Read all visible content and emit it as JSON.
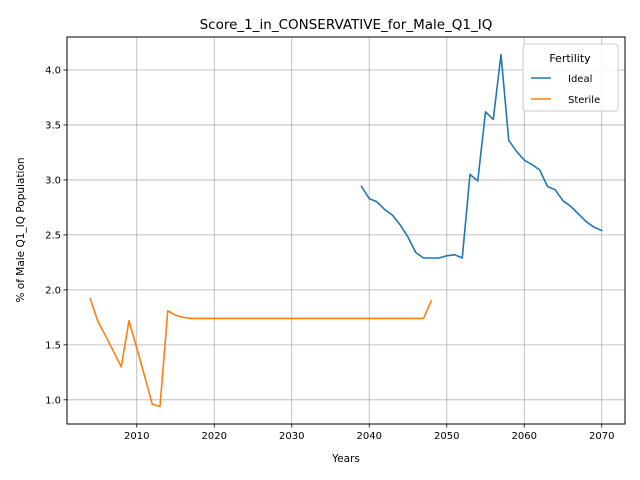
{
  "chart_data": {
    "type": "line",
    "title": "Score_1_in_CONSERVATIVE_for_Male_Q1_IQ",
    "xlabel": "Years",
    "ylabel": "% of Male Q1_IQ Population",
    "xlim": [
      2001,
      2073
    ],
    "ylim": [
      0.78,
      4.3
    ],
    "xticks": [
      2010,
      2020,
      2030,
      2040,
      2050,
      2060,
      2070
    ],
    "yticks": [
      1.0,
      1.5,
      2.0,
      2.5,
      3.0,
      3.5,
      4.0
    ],
    "ytick_labels": [
      "1.0",
      "1.5",
      "2.0",
      "2.5",
      "3.0",
      "3.5",
      "4.0"
    ],
    "grid": true,
    "legend": {
      "title": "Fertility",
      "position": "top-right"
    },
    "series": [
      {
        "name": "Ideal",
        "color": "#1f77b4",
        "x": [
          2039,
          2040,
          2041,
          2042,
          2043,
          2044,
          2045,
          2046,
          2047,
          2048,
          2049,
          2050,
          2051,
          2052,
          2053,
          2054,
          2055,
          2056,
          2057,
          2058,
          2059,
          2060,
          2061,
          2062,
          2063,
          2064,
          2065,
          2066,
          2067,
          2068,
          2069,
          2070
        ],
        "y": [
          2.94,
          2.83,
          2.8,
          2.73,
          2.68,
          2.59,
          2.48,
          2.34,
          2.29,
          2.29,
          2.29,
          2.31,
          2.32,
          2.29,
          3.05,
          2.99,
          3.62,
          3.55,
          4.14,
          3.36,
          3.26,
          3.18,
          3.14,
          3.09,
          2.94,
          2.91,
          2.81,
          2.76,
          2.69,
          2.62,
          2.57,
          2.54
        ]
      },
      {
        "name": "Sterile",
        "color": "#ff7f0e",
        "x": [
          2004,
          2005,
          2006,
          2007,
          2008,
          2009,
          2010,
          2011,
          2012,
          2013,
          2014,
          2015,
          2016,
          2017,
          2018,
          2019,
          2020,
          2021,
          2022,
          2023,
          2024,
          2025,
          2026,
          2027,
          2028,
          2029,
          2030,
          2031,
          2032,
          2033,
          2034,
          2035,
          2036,
          2037,
          2038,
          2039,
          2040,
          2041,
          2042,
          2043,
          2044,
          2045,
          2046,
          2047,
          2048
        ],
        "y": [
          1.92,
          1.71,
          1.58,
          1.44,
          1.3,
          1.72,
          1.47,
          1.22,
          0.96,
          0.94,
          1.81,
          1.77,
          1.75,
          1.74,
          1.74,
          1.74,
          1.74,
          1.74,
          1.74,
          1.74,
          1.74,
          1.74,
          1.74,
          1.74,
          1.74,
          1.74,
          1.74,
          1.74,
          1.74,
          1.74,
          1.74,
          1.74,
          1.74,
          1.74,
          1.74,
          1.74,
          1.74,
          1.74,
          1.74,
          1.74,
          1.74,
          1.74,
          1.74,
          1.74,
          1.9
        ]
      }
    ]
  }
}
